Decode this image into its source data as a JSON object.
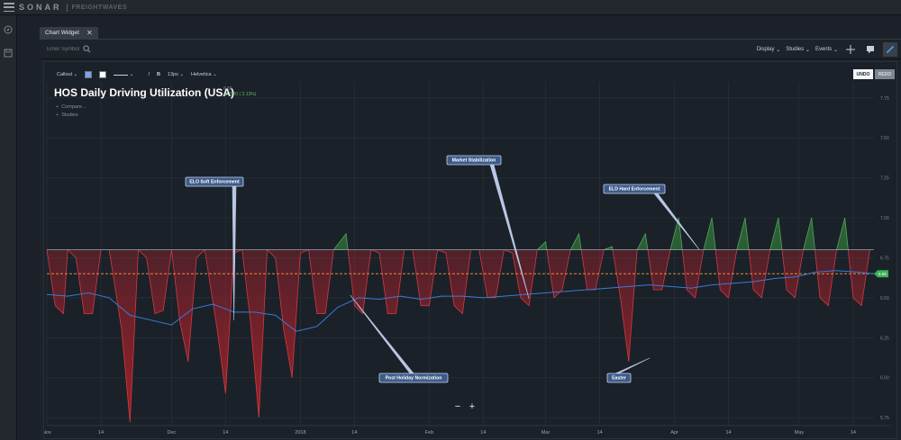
{
  "topbar": {
    "logo": "SONAR",
    "partner": "FREIGHTWAVES"
  },
  "tab": {
    "label": "Chart Widget"
  },
  "toolbar": {
    "symbol_placeholder": "Enter Symbol",
    "display_label": "Display",
    "studies_label": "Studies",
    "events_label": "Events"
  },
  "draw_toolbar": {
    "tool_label": "Callout",
    "fill_color": "#7da3e8",
    "line_color": "#ffffff",
    "italic_label": "I",
    "bold_label": "B",
    "font_size": "13px",
    "font_family": "Helvetica",
    "undo_label": "UNDO",
    "redo_label": "REDO"
  },
  "legend": {
    "title": "HOS Daily Driving Utilization (USA)",
    "last": "6.65",
    "change": "0.20 ( 3.13%)",
    "compare_label": "Compare...",
    "studies_label": "Studies"
  },
  "colors": {
    "positive_fill": "#2f6b38",
    "negative_fill": "#b3212a",
    "moving_average": "#3a7bd5",
    "baseline": "#ff9a3c",
    "current_badge": "#3bb25a"
  },
  "chart_data": {
    "type": "area",
    "baseline": 6.8,
    "current_value": "6.65",
    "ylim": [
      5.7,
      7.85
    ],
    "y_ticks": [
      "7.75",
      "7.50",
      "7.25",
      "7.00",
      "6.75",
      "6.50",
      "6.25",
      "6.00",
      "5.75"
    ],
    "x_ticks": [
      "Nov",
      "14",
      "Dec",
      "14",
      "2018",
      "14",
      "Feb",
      "14",
      "Mar",
      "14",
      "Apr",
      "14",
      "May",
      "14"
    ],
    "x_tick_days": [
      0,
      13,
      30,
      43,
      61,
      74,
      92,
      105,
      120,
      133,
      151,
      164,
      181,
      194
    ],
    "daily_series": {
      "name": "HOS Daily Driving Utilization (USA)",
      "days": [
        0,
        2,
        4,
        5,
        7,
        9,
        11,
        13,
        15,
        18,
        20,
        22,
        24,
        26,
        28,
        30,
        32,
        34,
        36,
        38,
        41,
        43,
        45,
        47,
        49,
        51,
        53,
        55,
        57,
        59,
        61,
        63,
        65,
        67,
        69,
        72,
        74,
        76,
        78,
        80,
        82,
        84,
        86,
        88,
        90,
        92,
        94,
        96,
        98,
        100,
        102,
        104,
        106,
        108,
        110,
        112,
        114,
        116,
        118,
        120,
        122,
        124,
        126,
        128,
        130,
        132,
        134,
        136,
        138,
        140,
        142,
        144,
        146,
        148,
        150,
        152,
        154,
        156,
        158,
        160,
        162,
        164,
        166,
        168,
        170,
        172,
        174,
        176,
        178,
        180,
        182,
        184,
        186,
        188,
        190,
        192,
        194,
        196,
        198
      ],
      "values": [
        6.8,
        6.45,
        6.4,
        6.8,
        6.75,
        6.4,
        6.4,
        6.8,
        6.8,
        6.3,
        5.72,
        6.8,
        6.75,
        6.4,
        6.42,
        6.8,
        6.35,
        6.1,
        6.75,
        6.8,
        6.3,
        5.9,
        6.78,
        6.8,
        6.35,
        5.75,
        6.8,
        6.75,
        6.3,
        6.0,
        6.78,
        6.8,
        6.4,
        6.4,
        6.8,
        6.9,
        6.45,
        6.4,
        6.8,
        6.78,
        6.4,
        6.4,
        6.8,
        6.8,
        6.45,
        6.45,
        6.8,
        6.78,
        6.45,
        6.4,
        6.8,
        6.8,
        6.5,
        6.5,
        6.8,
        6.78,
        6.5,
        6.45,
        6.8,
        6.85,
        6.5,
        6.55,
        6.8,
        6.9,
        6.55,
        6.55,
        6.8,
        6.82,
        6.5,
        6.1,
        6.8,
        6.9,
        6.55,
        6.55,
        6.8,
        7.0,
        6.55,
        6.5,
        6.8,
        7.0,
        6.55,
        6.5,
        6.8,
        7.0,
        6.55,
        6.5,
        6.8,
        7.0,
        6.55,
        6.5,
        6.8,
        7.0,
        6.5,
        6.45,
        6.8,
        7.0,
        6.5,
        6.45,
        6.8
      ]
    },
    "moving_average": {
      "days": [
        0,
        5,
        10,
        15,
        20,
        25,
        30,
        35,
        40,
        45,
        50,
        55,
        60,
        65,
        70,
        75,
        80,
        85,
        90,
        95,
        100,
        105,
        110,
        115,
        120,
        125,
        130,
        135,
        140,
        145,
        150,
        155,
        160,
        165,
        170,
        175,
        180,
        185,
        190,
        195,
        199
      ],
      "values": [
        6.52,
        6.51,
        6.53,
        6.5,
        6.39,
        6.36,
        6.33,
        6.43,
        6.46,
        6.41,
        6.41,
        6.39,
        6.29,
        6.32,
        6.44,
        6.5,
        6.49,
        6.51,
        6.49,
        6.51,
        6.51,
        6.5,
        6.51,
        6.52,
        6.53,
        6.54,
        6.55,
        6.56,
        6.57,
        6.58,
        6.57,
        6.56,
        6.58,
        6.59,
        6.6,
        6.62,
        6.63,
        6.66,
        6.67,
        6.66,
        6.65
      ]
    },
    "annotations": [
      {
        "label": "ELO Soft Enforcement",
        "day": 45
      },
      {
        "label": "Market Stabilization",
        "day": 116
      },
      {
        "label": "ELD Hard Enforcement",
        "day": 157
      },
      {
        "label": "Post Holiday Normization",
        "day": 73
      },
      {
        "label": "Easter",
        "day": 145
      }
    ]
  }
}
